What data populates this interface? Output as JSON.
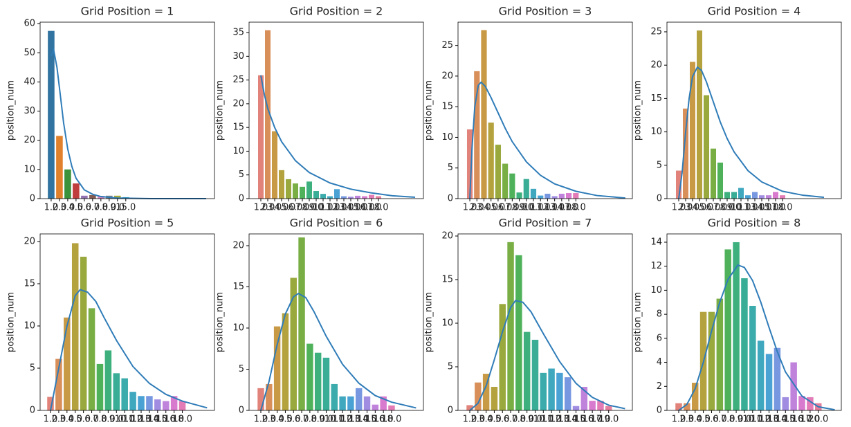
{
  "chart_data": [
    {
      "type": "bar",
      "title": "Grid Position = 1",
      "ylabel": "position_num",
      "categories": [
        "1.0",
        "2.0",
        "3.0",
        "4.0",
        "5.0",
        "6.0",
        "7.0",
        "8.0",
        "9.0",
        "15.0"
      ],
      "values": [
        57.5,
        21.5,
        10,
        5.2,
        1,
        1.2,
        0.9,
        1,
        1,
        0.5
      ],
      "colors": [
        "#3274a1",
        "#e1812c",
        "#3a923a",
        "#c03d3e",
        "#9372b2",
        "#845b53",
        "#d684bd",
        "#7f7f7f",
        "#a9aa35",
        "#2eabb8"
      ],
      "xlim": [
        -1.33,
        19.7
      ],
      "ylim": [
        0,
        60.5
      ],
      "yticks": [
        0,
        10,
        20,
        30,
        40,
        50,
        60
      ],
      "line": {
        "color": "#2f7cb8",
        "x": [
          0,
          0.3,
          0.7,
          1,
          1.5,
          2,
          2.5,
          3,
          4,
          5,
          6,
          8,
          12,
          18.7
        ],
        "values": [
          49,
          51,
          45,
          38,
          26,
          17,
          11,
          7,
          3,
          1.5,
          0.7,
          0.2,
          0,
          0
        ]
      }
    },
    {
      "type": "bar",
      "title": "Grid Position = 2",
      "ylabel": "position_num",
      "categories": [
        "1.0",
        "2.0",
        "3.0",
        "4.0",
        "5.0",
        "6.0",
        "7.0",
        "8.0",
        "9.0",
        "10.0",
        "11.0",
        "12.0",
        "13.0",
        "14.0",
        "15.0",
        "16.0",
        "17.0",
        "18.0"
      ],
      "values": [
        26,
        35.5,
        14.2,
        6,
        4.1,
        3.2,
        2.5,
        3.6,
        1.6,
        1,
        0.5,
        2,
        0.5,
        0.4,
        0.6,
        0.5,
        0.8,
        0.5
      ],
      "colors": [
        "#e1837a",
        "#d98f5a",
        "#c99a45",
        "#b4a23f",
        "#9aa93e",
        "#79ae45",
        "#4fb25a",
        "#3db07d",
        "#3aad96",
        "#3cabab",
        "#3fa8bf",
        "#4aa2d4",
        "#7798e0",
        "#a08de1",
        "#c083dc",
        "#d87bcf",
        "#e27bb6",
        "#e57f9d"
      ],
      "xlim": [
        -1.7,
        23.5
      ],
      "ylim": [
        0,
        37.2
      ],
      "yticks": [
        0,
        5,
        10,
        15,
        20,
        25,
        30,
        35
      ],
      "line": {
        "color": "#2f7cb8",
        "x": [
          0,
          0.5,
          1,
          2,
          3,
          4,
          5,
          7,
          10,
          13,
          16,
          19,
          22.3
        ],
        "values": [
          26,
          22,
          19,
          15,
          12,
          10,
          8,
          5.5,
          3.3,
          2,
          1.2,
          0.6,
          0.3
        ]
      }
    },
    {
      "type": "bar",
      "title": "Grid Position = 3",
      "ylabel": "position_num",
      "categories": [
        "1.0",
        "2.0",
        "3.0",
        "4.0",
        "5.0",
        "6.0",
        "7.0",
        "8.0",
        "9.0",
        "10.0",
        "11.0",
        "12.0",
        "13.0",
        "14.0",
        "17.0",
        "18.0"
      ],
      "values": [
        11.3,
        20.8,
        27.5,
        12.4,
        8.8,
        5.7,
        4.1,
        1,
        3.2,
        1.6,
        0.5,
        0.8,
        0.4,
        0.8,
        0.9,
        0.9
      ],
      "colors": [
        "#e1837a",
        "#d98f5a",
        "#c99a45",
        "#b4a23f",
        "#9aa93e",
        "#79ae45",
        "#4fb25a",
        "#3db07d",
        "#3aad96",
        "#3fa8bf",
        "#4aa2d4",
        "#7798e0",
        "#a08de1",
        "#c083dc",
        "#d87bcf",
        "#e27bb6"
      ],
      "xlim": [
        -1.67,
        23
      ],
      "ylim": [
        0,
        28.8
      ],
      "yticks": [
        0,
        5,
        10,
        15,
        20,
        25
      ],
      "line": {
        "color": "#2f7cb8",
        "x": [
          0,
          0.3,
          0.7,
          1.2,
          1.6,
          2.2,
          3,
          4,
          5,
          6,
          8,
          10,
          12,
          15,
          18,
          22
        ],
        "values": [
          0,
          8,
          15,
          18.5,
          19,
          18.3,
          16.5,
          14,
          11.5,
          9.3,
          6,
          3.8,
          2.4,
          1.2,
          0.5,
          0.1
        ]
      }
    },
    {
      "type": "bar",
      "title": "Grid Position = 4",
      "ylabel": "position_num",
      "categories": [
        "1.0",
        "2.0",
        "3.0",
        "4.0",
        "5.0",
        "6.0",
        "7.0",
        "8.0",
        "9.0",
        "10.0",
        "11.0",
        "13.0",
        "14.0",
        "15.0",
        "17.0",
        "18.0"
      ],
      "values": [
        4.2,
        13.5,
        20.5,
        25.2,
        15.5,
        7.5,
        5.4,
        1,
        1,
        1.6,
        0.5,
        1,
        0.5,
        0.5,
        1,
        0.5
      ],
      "colors": [
        "#e1837a",
        "#d98f5a",
        "#c99a45",
        "#b4a23f",
        "#9aa93e",
        "#79ae45",
        "#4fb25a",
        "#3db07d",
        "#3aad96",
        "#3fa8bf",
        "#4aa2d4",
        "#7798e0",
        "#a08de1",
        "#c083dc",
        "#d87bcf",
        "#e27bb6"
      ],
      "xlim": [
        -1.7,
        23.5
      ],
      "ylim": [
        0,
        26.45
      ],
      "yticks": [
        0,
        5,
        10,
        15,
        20,
        25
      ],
      "line": {
        "color": "#2f7cb8",
        "x": [
          0,
          0.5,
          1,
          1.5,
          2,
          2.7,
          3.3,
          4,
          5,
          6,
          7,
          8,
          10,
          12,
          15,
          18,
          21
        ],
        "values": [
          0,
          4,
          10,
          15,
          18.3,
          19.7,
          19.2,
          17.5,
          14.5,
          11.5,
          9,
          7,
          4.2,
          2.5,
          1.1,
          0.5,
          0.2
        ]
      }
    },
    {
      "type": "bar",
      "title": "Grid Position = 5",
      "ylabel": "position_num",
      "categories": [
        "1.0",
        "2.0",
        "3.0",
        "4.0",
        "5.0",
        "6.0",
        "7.0",
        "8.0",
        "9.0",
        "10.0",
        "11.0",
        "12.0",
        "13.0",
        "14.0",
        "15.0",
        "16.0",
        "18.0"
      ],
      "values": [
        1.6,
        6.1,
        11,
        19.8,
        18.2,
        12.1,
        5.5,
        7.1,
        4.4,
        3.8,
        2.2,
        1.7,
        1.7,
        1.3,
        1.1,
        1.7,
        1.1
      ],
      "colors": [
        "#e1837a",
        "#d98f5a",
        "#c99a45",
        "#b4a23f",
        "#9aa93e",
        "#79ae45",
        "#4fb25a",
        "#3db07d",
        "#3aad96",
        "#3cabab",
        "#3fa8bf",
        "#4aa2d4",
        "#7798e0",
        "#a08de1",
        "#c083dc",
        "#d87bcf",
        "#e27bb6"
      ],
      "xlim": [
        -1.26,
        19.9
      ],
      "ylim": [
        0,
        20.9
      ],
      "yticks": [
        0,
        5,
        10,
        15,
        20
      ],
      "line": {
        "color": "#2f7cb8",
        "x": [
          0,
          1,
          2,
          3,
          3.6,
          4.5,
          5.5,
          6.5,
          8,
          10,
          12,
          14,
          16,
          19
        ],
        "values": [
          0,
          5,
          10,
          13.6,
          14.3,
          14,
          12.9,
          11,
          8.3,
          5.2,
          3.2,
          1.9,
          1.1,
          0.3
        ]
      }
    },
    {
      "type": "bar",
      "title": "Grid Position = 6",
      "ylabel": "position_num",
      "categories": [
        "1.0",
        "2.0",
        "3.0",
        "4.0",
        "5.0",
        "6.0",
        "7.0",
        "8.0",
        "9.0",
        "10.0",
        "11.0",
        "12.0",
        "13.0",
        "14.0",
        "15.0",
        "16.0",
        "18.0"
      ],
      "values": [
        2.7,
        3.2,
        10.2,
        11.8,
        16.1,
        21,
        8.1,
        7,
        6.4,
        3.2,
        1.7,
        1.7,
        2.7,
        1.7,
        0.7,
        1.7,
        0.6
      ],
      "colors": [
        "#e1837a",
        "#d98f5a",
        "#c99a45",
        "#b4a23f",
        "#9aa93e",
        "#79ae45",
        "#4fb25a",
        "#3db07d",
        "#3aad96",
        "#3cabab",
        "#3fa8bf",
        "#4aa2d4",
        "#7798e0",
        "#a08de1",
        "#c083dc",
        "#d87bcf",
        "#e27bb6"
      ],
      "xlim": [
        -1.44,
        19.9
      ],
      "ylim": [
        0,
        21.43
      ],
      "yticks": [
        0,
        5,
        10,
        15,
        20
      ],
      "line": {
        "color": "#2f7cb8",
        "x": [
          0,
          1,
          2,
          3,
          4,
          4.6,
          5.5,
          6.5,
          8,
          10,
          12,
          14,
          16,
          19
        ],
        "values": [
          0,
          3.5,
          8,
          11.7,
          13.8,
          14.2,
          13.7,
          12,
          9,
          5.6,
          3.3,
          1.8,
          1,
          0.3
        ]
      }
    },
    {
      "type": "bar",
      "title": "Grid Position = 7",
      "ylabel": "position_num",
      "categories": [
        "1.0",
        "2.0",
        "3.0",
        "4.0",
        "5.0",
        "6.0",
        "7.0",
        "8.0",
        "9.0",
        "10.0",
        "11.0",
        "12.0",
        "13.0",
        "14.0",
        "15.0",
        "16.0",
        "17.0",
        "19.0"
      ],
      "values": [
        0.6,
        3.2,
        4.2,
        2.7,
        12.2,
        19.3,
        17.8,
        9,
        8.1,
        4.3,
        4.8,
        4.3,
        3.8,
        0.5,
        2.7,
        1.1,
        1.1,
        0.5
      ],
      "colors": [
        "#e1837a",
        "#d98f5a",
        "#c99a45",
        "#b4a23f",
        "#9aa93e",
        "#79ae45",
        "#4fb25a",
        "#3db07d",
        "#3aad96",
        "#3cabab",
        "#3fa8bf",
        "#4aa2d4",
        "#7798e0",
        "#a08de1",
        "#c083dc",
        "#d87bcf",
        "#e27bb6",
        "#e57f9d"
      ],
      "xlim": [
        -1.44,
        19.9
      ],
      "ylim": [
        0,
        20.24
      ],
      "yticks": [
        0,
        5,
        10,
        15,
        20
      ],
      "line": {
        "color": "#2f7cb8",
        "x": [
          0,
          1,
          2,
          3,
          4,
          5,
          5.6,
          6.5,
          7.5,
          9,
          11,
          13,
          15,
          17,
          19
        ],
        "values": [
          0,
          0.8,
          2.8,
          5.8,
          9,
          11.8,
          12.6,
          12.4,
          11.3,
          8.8,
          5.6,
          3.1,
          1.5,
          0.6,
          0.2
        ]
      }
    },
    {
      "type": "bar",
      "title": "Grid Position = 8",
      "ylabel": "position_num",
      "categories": [
        "1.0",
        "2.0",
        "3.0",
        "4.0",
        "5.0",
        "6.0",
        "7.0",
        "8.0",
        "9.0",
        "10.0",
        "11.0",
        "12.0",
        "13.0",
        "14.0",
        "15.0",
        "16.0",
        "17.0",
        "20.0"
      ],
      "values": [
        0.6,
        0.6,
        2.3,
        8.2,
        8.2,
        9.3,
        13.4,
        14,
        11,
        8.7,
        5.8,
        4.7,
        5.2,
        1.1,
        4,
        1.2,
        1.1,
        0.6
      ],
      "colors": [
        "#e1837a",
        "#d98f5a",
        "#c99a45",
        "#b4a23f",
        "#9aa93e",
        "#79ae45",
        "#4fb25a",
        "#3db07d",
        "#3aad96",
        "#3cabab",
        "#3fa8bf",
        "#4aa2d4",
        "#7798e0",
        "#a08de1",
        "#c083dc",
        "#d87bcf",
        "#e27bb6",
        "#e57f9d"
      ],
      "xlim": [
        -1.43,
        19.8
      ],
      "ylim": [
        0,
        14.69
      ],
      "yticks": [
        0,
        2,
        4,
        6,
        8,
        10,
        12,
        14
      ],
      "line": {
        "color": "#2f7cb8",
        "x": [
          0,
          1,
          2,
          3,
          4,
          5,
          6,
          7.2,
          8,
          9,
          10,
          11,
          12,
          13,
          15,
          17,
          19
        ],
        "values": [
          0,
          0.5,
          1.8,
          4,
          6.6,
          9,
          10.9,
          12.1,
          11.9,
          10.8,
          9,
          6.9,
          4.9,
          3.2,
          1.2,
          0.3,
          0.05
        ]
      }
    }
  ]
}
